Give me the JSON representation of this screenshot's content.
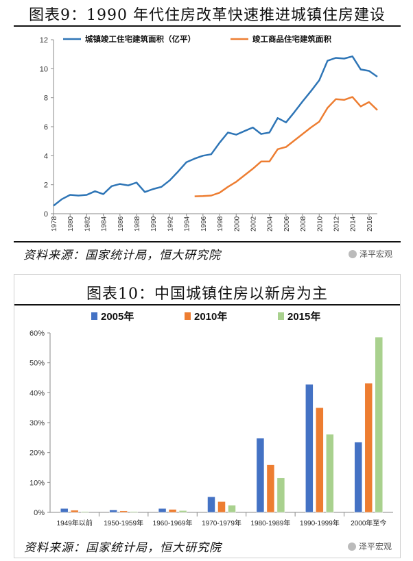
{
  "chart1": {
    "title": "图表9：1990 年代住房改革快速推进城镇住房建设",
    "source": "资料来源：国家统计局，恒大研究院",
    "watermark": "泽平宏观",
    "chart_data": {
      "type": "line",
      "x": [
        1978,
        1979,
        1980,
        1981,
        1982,
        1983,
        1984,
        1985,
        1986,
        1987,
        1988,
        1989,
        1990,
        1991,
        1992,
        1993,
        1994,
        1995,
        1996,
        1997,
        1998,
        1999,
        2000,
        2001,
        2002,
        2003,
        2004,
        2005,
        2006,
        2007,
        2008,
        2009,
        2010,
        2011,
        2012,
        2013,
        2014,
        2015,
        2016,
        2017
      ],
      "x_ticks": [
        "1978",
        "1980",
        "1982",
        "1984",
        "1986",
        "1988",
        "1990",
        "1992",
        "1994",
        "1996",
        "1998",
        "2000",
        "2002",
        "2004",
        "2006",
        "2008",
        "2010",
        "2012",
        "2014",
        "2016"
      ],
      "ylim": [
        0,
        12
      ],
      "y_ticks": [
        "0",
        "2",
        "4",
        "6",
        "8",
        "10",
        "12"
      ],
      "series": [
        {
          "name": "城镇竣工住宅建筑面积（亿平）",
          "color": "#2e75b6",
          "values": [
            0.55,
            1.0,
            1.3,
            1.25,
            1.3,
            1.55,
            1.35,
            1.9,
            2.05,
            1.95,
            2.15,
            1.5,
            1.7,
            1.85,
            2.3,
            2.9,
            3.55,
            3.8,
            4.0,
            4.1,
            4.9,
            5.6,
            5.45,
            5.7,
            5.95,
            5.5,
            5.6,
            6.6,
            6.3,
            7.0,
            7.75,
            8.45,
            9.2,
            10.55,
            10.75,
            10.7,
            10.85,
            9.95,
            9.85,
            9.45
          ]
        },
        {
          "name": "竣工商品住宅建筑面积",
          "color": "#ed7d31",
          "values": [
            null,
            null,
            null,
            null,
            null,
            null,
            null,
            null,
            null,
            null,
            null,
            null,
            null,
            null,
            null,
            null,
            null,
            1.2,
            1.22,
            1.25,
            1.45,
            1.85,
            2.2,
            2.65,
            3.1,
            3.6,
            3.6,
            4.45,
            4.6,
            5.05,
            5.5,
            5.95,
            6.35,
            7.3,
            7.9,
            7.85,
            8.05,
            7.4,
            7.7,
            7.15
          ]
        }
      ]
    }
  },
  "chart2": {
    "title": "图表10：中国城镇住房以新房为主",
    "source": "资料来源：国家统计局，恒大研究院",
    "watermark": "泽平宏观",
    "chart_data": {
      "type": "bar",
      "categories": [
        "1949年以前",
        "1950-1959年",
        "1960-1969年",
        "1970-1979年",
        "1980-1989年",
        "1990-1999年",
        "2000年至今"
      ],
      "ylim": [
        0,
        60
      ],
      "y_ticks": [
        "0%",
        "10%",
        "20%",
        "30%",
        "40%",
        "50%",
        "60%"
      ],
      "series": [
        {
          "name": "2005年",
          "color": "#4472c4",
          "values": [
            1.3,
            0.8,
            1.3,
            5.2,
            24.8,
            42.8,
            23.5
          ]
        },
        {
          "name": "2010年",
          "color": "#ed7d31",
          "values": [
            0.7,
            0.5,
            1.0,
            3.6,
            15.9,
            35.0,
            43.2
          ]
        },
        {
          "name": "2015年",
          "color": "#a9d18e",
          "values": [
            0.3,
            0.3,
            0.6,
            2.4,
            11.5,
            26.1,
            58.6
          ]
        }
      ]
    }
  }
}
